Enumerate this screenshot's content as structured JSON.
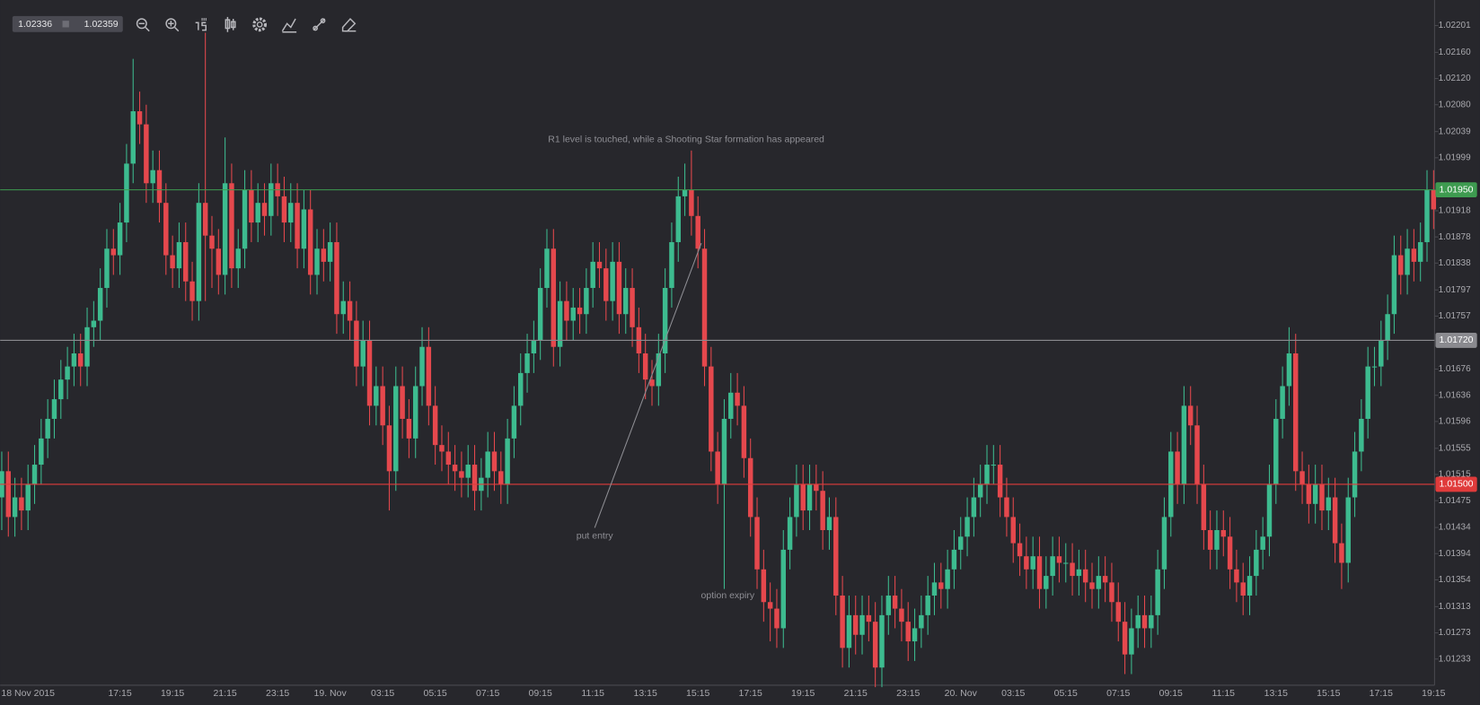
{
  "toolbar": {
    "bid": "1.02336",
    "ask": "1.02359"
  },
  "chart_data": {
    "type": "candlestick",
    "up_color": "#3dbb8f",
    "down_color": "#e5484d",
    "ylim": [
      1.01193,
      1.0224
    ],
    "yticks": [
      1.02201,
      {
        "value": 1.0216,
        "label": "1.02160"
      },
      {
        "value": 1.0212,
        "label": "1.02120"
      },
      {
        "value": 1.0208,
        "label": "1.02080"
      },
      1.02039,
      1.01999,
      1.01918,
      1.01878,
      1.01838,
      1.01797,
      1.01757,
      1.01676,
      1.01636,
      1.01596,
      1.01555,
      1.01515,
      1.01475,
      1.01434,
      1.01394,
      1.01354,
      1.01313,
      1.01273,
      1.01233
    ],
    "levels": [
      {
        "value": 1.0195,
        "label": "1.01950",
        "color": "#3e9b50"
      },
      {
        "value": 1.0172,
        "label": "1.01720",
        "color": "#8a8a8f"
      },
      {
        "value": 1.015,
        "label": "1.01500",
        "color": "#e03b3b"
      }
    ],
    "annotations": [
      {
        "text": "R1 level is touched, while a Shooting Star formation has appeared"
      },
      {
        "text": "put entry"
      },
      {
        "text": "option expiry"
      }
    ],
    "categories": [
      null,
      null,
      null,
      null,
      "18 Nov 2015",
      null,
      null,
      null,
      null,
      null,
      null,
      null,
      null,
      null,
      null,
      null,
      null,
      null,
      "17:15",
      null,
      null,
      null,
      null,
      null,
      null,
      null,
      "19:15",
      null,
      null,
      null,
      null,
      null,
      null,
      null,
      "21:15",
      null,
      null,
      null,
      null,
      null,
      null,
      null,
      "23:15",
      null,
      null,
      null,
      null,
      null,
      null,
      null,
      "19. Nov",
      null,
      null,
      null,
      null,
      null,
      null,
      null,
      "03:15",
      null,
      null,
      null,
      null,
      null,
      null,
      null,
      "05:15",
      null,
      null,
      null,
      null,
      null,
      null,
      null,
      "07:15",
      null,
      null,
      null,
      null,
      null,
      null,
      null,
      "09:15",
      null,
      null,
      null,
      null,
      null,
      null,
      null,
      "11:15",
      null,
      null,
      null,
      null,
      null,
      null,
      null,
      "13:15",
      null,
      null,
      null,
      null,
      null,
      null,
      null,
      "15:15",
      null,
      null,
      null,
      null,
      null,
      null,
      null,
      "17:15",
      null,
      null,
      null,
      null,
      null,
      null,
      null,
      "19:15",
      null,
      null,
      null,
      null,
      null,
      null,
      null,
      "21:15",
      null,
      null,
      null,
      null,
      null,
      null,
      null,
      "23:15",
      null,
      null,
      null,
      null,
      null,
      null,
      null,
      "20. Nov",
      null,
      null,
      null,
      null,
      null,
      null,
      null,
      "03:15",
      null,
      null,
      null,
      null,
      null,
      null,
      null,
      "05:15",
      null,
      null,
      null,
      null,
      null,
      null,
      null,
      "07:15",
      null,
      null,
      null,
      null,
      null,
      null,
      null,
      "09:15",
      null,
      null,
      null,
      null,
      null,
      null,
      null,
      "11:15",
      null,
      null,
      null,
      null,
      null,
      null,
      null,
      "13:15",
      null,
      null,
      null,
      null,
      null,
      null,
      null,
      "15:15",
      null,
      null,
      null,
      null,
      null,
      null,
      null,
      "17:15",
      null,
      null,
      null,
      null,
      null,
      null,
      null,
      "19:15"
    ],
    "open": [
      1.0148,
      1.0152,
      1.0145,
      1.0148,
      1.0146,
      1.015,
      1.0153,
      1.0157,
      1.016,
      1.0163,
      1.0166,
      1.0168,
      1.017,
      1.0168,
      1.0174,
      1.0175,
      1.018,
      1.0186,
      1.0185,
      1.019,
      1.0199,
      1.0207,
      1.0205,
      1.0196,
      1.0198,
      1.0193,
      1.0185,
      1.0183,
      1.0187,
      1.0181,
      1.0178,
      1.0193,
      1.0188,
      1.0186,
      1.0182,
      1.0196,
      1.0183,
      1.0186,
      1.0195,
      1.019,
      1.0193,
      1.0191,
      1.0196,
      1.0194,
      1.019,
      1.0193,
      1.0186,
      1.0192,
      1.0182,
      1.0186,
      1.0184,
      1.0187,
      1.0176,
      1.0178,
      1.0175,
      1.0168,
      1.0172,
      1.0162,
      1.0165,
      1.0159,
      1.0152,
      1.0165,
      1.016,
      1.0157,
      1.0165,
      1.0171,
      1.0162,
      1.0156,
      1.0155,
      1.0153,
      1.0152,
      1.0151,
      1.0153,
      1.0149,
      1.0151,
      1.0155,
      1.0152,
      1.015,
      1.0157,
      1.0162,
      1.0167,
      1.017,
      1.0172,
      1.018,
      1.0186,
      1.0171,
      1.0178,
      1.0175,
      1.0177,
      1.0176,
      1.018,
      1.0184,
      1.0183,
      1.0178,
      1.0184,
      1.0176,
      1.018,
      1.0174,
      1.017,
      1.0166,
      1.0165,
      1.017,
      1.018,
      1.0187,
      1.0194,
      1.0195,
      1.0191,
      1.0186,
      1.0168,
      1.0155,
      1.015,
      1.016,
      1.0164,
      1.0162,
      1.0154,
      1.0145,
      1.0137,
      1.0132,
      1.0131,
      1.0128,
      1.014,
      1.0145,
      1.015,
      1.0146,
      1.015,
      1.0149,
      1.0143,
      1.0145,
      1.0133,
      1.0125,
      1.013,
      1.0127,
      1.013,
      1.0129,
      1.0122,
      1.013,
      1.0133,
      1.0131,
      1.0129,
      1.0126,
      1.0128,
      1.013,
      1.0133,
      1.0135,
      1.0134,
      1.0137,
      1.014,
      1.0142,
      1.0145,
      1.0148,
      1.015,
      1.0153,
      1.0153,
      1.0148,
      1.0145,
      1.0141,
      1.0139,
      1.0137,
      1.0139,
      1.0134,
      1.0136,
      1.0139,
      1.0138,
      1.0138,
      1.0136,
      1.0137,
      1.0135,
      1.0134,
      1.0136,
      1.0135,
      1.0132,
      1.0129,
      1.0124,
      1.0128,
      1.013,
      1.0128,
      1.013,
      1.0137,
      1.0145,
      1.0155,
      1.015,
      1.0162,
      1.0159,
      1.015,
      1.0143,
      1.014,
      1.0143,
      1.0142,
      1.0137,
      1.0135,
      1.0133,
      1.0136,
      1.014,
      1.0142,
      1.015,
      1.016,
      1.0165,
      1.017,
      1.0152,
      1.015,
      1.0147,
      1.015,
      1.0146,
      1.0148,
      1.0141,
      1.0138,
      1.0148,
      1.0155,
      1.016,
      1.0168,
      1.0168,
      1.0172,
      1.0176,
      1.0185,
      1.0182,
      1.0186,
      1.0184,
      1.0187,
      1.0195
    ],
    "high": [
      1.0155,
      1.0155,
      1.0151,
      1.0151,
      1.0153,
      1.0156,
      1.016,
      1.0163,
      1.0166,
      1.0169,
      1.0171,
      1.0173,
      1.0173,
      1.0177,
      1.0178,
      1.0183,
      1.0189,
      1.0189,
      1.0193,
      1.0202,
      1.0215,
      1.021,
      1.0208,
      1.0201,
      1.0201,
      1.0196,
      1.0188,
      1.019,
      1.019,
      1.0184,
      1.0196,
      1.0219,
      1.0191,
      1.0189,
      1.0203,
      1.0199,
      1.0189,
      1.0198,
      1.0198,
      1.0196,
      1.0196,
      1.0199,
      1.0199,
      1.0197,
      1.0196,
      1.0196,
      1.0195,
      1.0195,
      1.0189,
      1.0189,
      1.019,
      1.019,
      1.0181,
      1.0181,
      1.0178,
      1.0175,
      1.0175,
      1.0168,
      1.0168,
      1.0162,
      1.0168,
      1.0168,
      1.0163,
      1.0168,
      1.0174,
      1.0174,
      1.0165,
      1.0159,
      1.0158,
      1.0156,
      1.0155,
      1.0156,
      1.0156,
      1.0154,
      1.0158,
      1.0158,
      1.0155,
      1.016,
      1.0165,
      1.017,
      1.0173,
      1.0175,
      1.0183,
      1.0189,
      1.0189,
      1.0181,
      1.0181,
      1.018,
      1.018,
      1.0183,
      1.0187,
      1.0187,
      1.0186,
      1.0187,
      1.0187,
      1.0183,
      1.0183,
      1.0177,
      1.0173,
      1.0169,
      1.0173,
      1.0183,
      1.019,
      1.0197,
      1.0199,
      1.0201,
      1.0194,
      1.0189,
      1.0171,
      1.0158,
      1.0163,
      1.0167,
      1.0167,
      1.0165,
      1.0157,
      1.0148,
      1.014,
      1.0135,
      1.0134,
      1.0143,
      1.0148,
      1.0153,
      1.0153,
      1.0153,
      1.0153,
      1.0152,
      1.0148,
      1.0148,
      1.0136,
      1.0133,
      1.0133,
      1.0133,
      1.0133,
      1.0132,
      1.0133,
      1.0136,
      1.0136,
      1.0134,
      1.0132,
      1.0131,
      1.0133,
      1.0136,
      1.0138,
      1.0138,
      1.014,
      1.0143,
      1.0145,
      1.0148,
      1.0151,
      1.0153,
      1.0156,
      1.0156,
      1.0156,
      1.0151,
      1.0148,
      1.0144,
      1.0142,
      1.0142,
      1.0142,
      1.0139,
      1.0142,
      1.0142,
      1.0141,
      1.0141,
      1.014,
      1.014,
      1.0138,
      1.0139,
      1.0139,
      1.0138,
      1.0135,
      1.0132,
      1.0131,
      1.0133,
      1.0133,
      1.0133,
      1.014,
      1.0148,
      1.0158,
      1.0158,
      1.0165,
      1.0165,
      1.0162,
      1.0153,
      1.0146,
      1.0146,
      1.0146,
      1.0145,
      1.014,
      1.0138,
      1.0139,
      1.0143,
      1.0145,
      1.0153,
      1.0163,
      1.0168,
      1.0174,
      1.0173,
      1.0155,
      1.0153,
      1.0153,
      1.0153,
      1.0151,
      1.0151,
      1.0144,
      1.0151,
      1.0158,
      1.0163,
      1.0171,
      1.0171,
      1.0175,
      1.0179,
      1.0188,
      1.0188,
      1.0189,
      1.0189,
      1.019,
      1.0198,
      1.0198
    ],
    "low": [
      1.0143,
      1.0142,
      1.0142,
      1.0143,
      1.0143,
      1.0147,
      1.015,
      1.0154,
      1.0157,
      1.016,
      1.0163,
      1.0165,
      1.0165,
      1.0165,
      1.0171,
      1.0172,
      1.0177,
      1.0182,
      1.0182,
      1.0187,
      1.0196,
      1.0202,
      1.0193,
      1.0193,
      1.019,
      1.0182,
      1.018,
      1.018,
      1.0178,
      1.0175,
      1.0175,
      1.0178,
      1.018,
      1.0179,
      1.0179,
      1.018,
      1.018,
      1.0183,
      1.0187,
      1.0187,
      1.0188,
      1.0188,
      1.0191,
      1.0187,
      1.0187,
      1.0183,
      1.0183,
      1.0179,
      1.0179,
      1.0181,
      1.0181,
      1.0173,
      1.0173,
      1.0172,
      1.0165,
      1.0165,
      1.0159,
      1.0159,
      1.0156,
      1.0146,
      1.0149,
      1.0157,
      1.0154,
      1.0154,
      1.0162,
      1.0159,
      1.0153,
      1.0152,
      1.015,
      1.0149,
      1.0148,
      1.0148,
      1.0146,
      1.0146,
      1.0148,
      1.0149,
      1.0147,
      1.0147,
      1.0154,
      1.0159,
      1.0164,
      1.0167,
      1.0169,
      1.0177,
      1.0168,
      1.0168,
      1.0172,
      1.0172,
      1.0173,
      1.0173,
      1.0177,
      1.018,
      1.0175,
      1.0175,
      1.0173,
      1.0173,
      1.0171,
      1.0167,
      1.0163,
      1.0162,
      1.0162,
      1.0167,
      1.0177,
      1.0184,
      1.0191,
      1.0188,
      1.0183,
      1.0165,
      1.0152,
      1.0147,
      1.0134,
      1.0157,
      1.0159,
      1.0151,
      1.0142,
      1.0134,
      1.0129,
      1.0126,
      1.0125,
      1.0125,
      1.0137,
      1.0142,
      1.0143,
      1.0143,
      1.0146,
      1.014,
      1.014,
      1.013,
      1.0122,
      1.0122,
      1.0124,
      1.0124,
      1.0126,
      1.0119,
      1.0119,
      1.0127,
      1.0128,
      1.0126,
      1.0123,
      1.0123,
      1.0125,
      1.0127,
      1.013,
      1.0131,
      1.0131,
      1.0134,
      1.0137,
      1.0139,
      1.0142,
      1.0145,
      1.0147,
      1.015,
      1.0145,
      1.0142,
      1.0138,
      1.0136,
      1.0134,
      1.0134,
      1.0131,
      1.0131,
      1.0133,
      1.0135,
      1.0135,
      1.0133,
      1.0133,
      1.0132,
      1.0131,
      1.0131,
      1.0132,
      1.0129,
      1.0126,
      1.0121,
      1.0121,
      1.0125,
      1.0125,
      1.0125,
      1.0127,
      1.0134,
      1.0142,
      1.0147,
      1.0147,
      1.0156,
      1.0147,
      1.014,
      1.0137,
      1.0137,
      1.0139,
      1.0134,
      1.0132,
      1.013,
      1.013,
      1.0133,
      1.0137,
      1.0139,
      1.0147,
      1.0157,
      1.0162,
      1.0149,
      1.0147,
      1.0144,
      1.0144,
      1.0143,
      1.0143,
      1.0138,
      1.0134,
      1.0135,
      1.0145,
      1.0152,
      1.0157,
      1.0165,
      1.0165,
      1.0169,
      1.0173,
      1.0179,
      1.0179,
      1.0181,
      1.0181,
      1.0184,
      1.0189
    ],
    "close": [
      1.0152,
      1.0145,
      1.0148,
      1.0146,
      1.015,
      1.0153,
      1.0157,
      1.016,
      1.0163,
      1.0166,
      1.0168,
      1.017,
      1.0168,
      1.0174,
      1.0175,
      1.018,
      1.0186,
      1.0185,
      1.019,
      1.0199,
      1.0207,
      1.0205,
      1.0196,
      1.0198,
      1.0193,
      1.0185,
      1.0183,
      1.0187,
      1.0181,
      1.0178,
      1.0193,
      1.0188,
      1.0186,
      1.0182,
      1.0196,
      1.0183,
      1.0186,
      1.0195,
      1.019,
      1.0193,
      1.0191,
      1.0196,
      1.0194,
      1.019,
      1.0193,
      1.0186,
      1.0192,
      1.0182,
      1.0186,
      1.0184,
      1.0187,
      1.0176,
      1.0178,
      1.0175,
      1.0168,
      1.0172,
      1.0162,
      1.0165,
      1.0159,
      1.0152,
      1.0165,
      1.016,
      1.0157,
      1.0165,
      1.0171,
      1.0162,
      1.0156,
      1.0155,
      1.0153,
      1.0152,
      1.0151,
      1.0153,
      1.0149,
      1.0151,
      1.0155,
      1.0152,
      1.015,
      1.0157,
      1.0162,
      1.0167,
      1.017,
      1.0172,
      1.018,
      1.0186,
      1.0171,
      1.0178,
      1.0175,
      1.0177,
      1.0176,
      1.018,
      1.0184,
      1.0183,
      1.0178,
      1.0184,
      1.0176,
      1.018,
      1.0174,
      1.017,
      1.0166,
      1.0165,
      1.017,
      1.018,
      1.0187,
      1.0194,
      1.0195,
      1.0191,
      1.0186,
      1.0168,
      1.0155,
      1.015,
      1.016,
      1.0164,
      1.0162,
      1.0154,
      1.0145,
      1.0137,
      1.0132,
      1.0131,
      1.0128,
      1.014,
      1.0145,
      1.015,
      1.0146,
      1.015,
      1.0149,
      1.0143,
      1.0145,
      1.0133,
      1.0125,
      1.013,
      1.0127,
      1.013,
      1.0129,
      1.0122,
      1.013,
      1.0133,
      1.0131,
      1.0129,
      1.0126,
      1.0128,
      1.013,
      1.0133,
      1.0135,
      1.0134,
      1.0137,
      1.014,
      1.0142,
      1.0145,
      1.0148,
      1.015,
      1.0153,
      1.0153,
      1.0148,
      1.0145,
      1.0141,
      1.0139,
      1.0137,
      1.0139,
      1.0134,
      1.0136,
      1.0139,
      1.0138,
      1.0138,
      1.0136,
      1.0137,
      1.0135,
      1.0134,
      1.0136,
      1.0135,
      1.0132,
      1.0129,
      1.0124,
      1.0128,
      1.013,
      1.0128,
      1.013,
      1.0137,
      1.0145,
      1.0155,
      1.015,
      1.0162,
      1.0159,
      1.015,
      1.0143,
      1.014,
      1.0143,
      1.0142,
      1.0137,
      1.0135,
      1.0133,
      1.0136,
      1.014,
      1.0142,
      1.015,
      1.016,
      1.0165,
      1.017,
      1.0152,
      1.015,
      1.0147,
      1.015,
      1.0146,
      1.0148,
      1.0141,
      1.0138,
      1.0148,
      1.0155,
      1.016,
      1.0168,
      1.0168,
      1.0172,
      1.0176,
      1.0185,
      1.0182,
      1.0186,
      1.0184,
      1.0187,
      1.0195,
      1.0192
    ]
  }
}
